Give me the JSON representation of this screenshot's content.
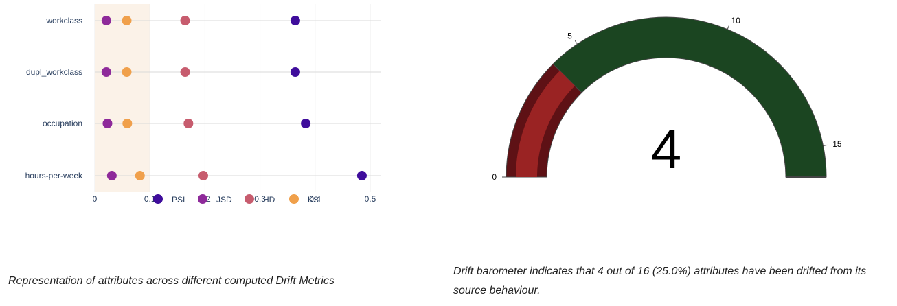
{
  "chart_data": [
    {
      "type": "scatter",
      "categories": [
        "workclass",
        "dupl_workclass",
        "occupation",
        "hours-per-week"
      ],
      "xlim": [
        0,
        0.52
      ],
      "xticks": [
        0,
        0.1,
        0.2,
        0.3,
        0.4,
        0.5
      ],
      "xtick_labels": [
        "0",
        "0.1",
        "0.2",
        "0.3",
        "0.4",
        "0.5"
      ],
      "highlight_band": [
        0,
        0.1
      ],
      "grid": true,
      "legend_position": "bottom",
      "series": [
        {
          "name": "PSI",
          "color": "#3f0d9c",
          "values": [
            0.364,
            0.364,
            0.383,
            0.485
          ]
        },
        {
          "name": "JSD",
          "color": "#8e2a9a",
          "values": [
            0.021,
            0.021,
            0.023,
            0.031
          ]
        },
        {
          "name": "HD",
          "color": "#c75c6e",
          "values": [
            0.164,
            0.164,
            0.17,
            0.197
          ]
        },
        {
          "name": "KS",
          "color": "#f0a04b",
          "values": [
            0.058,
            0.058,
            0.059,
            0.082
          ]
        }
      ]
    },
    {
      "type": "gauge",
      "value": 4,
      "value_label": "4",
      "min": 0,
      "max": 16,
      "ticks": [
        0,
        5,
        10,
        15
      ],
      "tick_labels": [
        "0",
        "5",
        "10",
        "15"
      ],
      "steps": [
        {
          "from": 0,
          "to": 4,
          "color": "#5e1115"
        },
        {
          "from": 4,
          "to": 16,
          "color": "#1b4521"
        }
      ],
      "bar_color": "#9a2323"
    }
  ],
  "captions": {
    "left": "Representation of attributes across different computed Drift Metrics",
    "right": "Drift barometer indicates that 4 out of 16 (25.0%) attributes have been drifted from its source behaviour."
  }
}
